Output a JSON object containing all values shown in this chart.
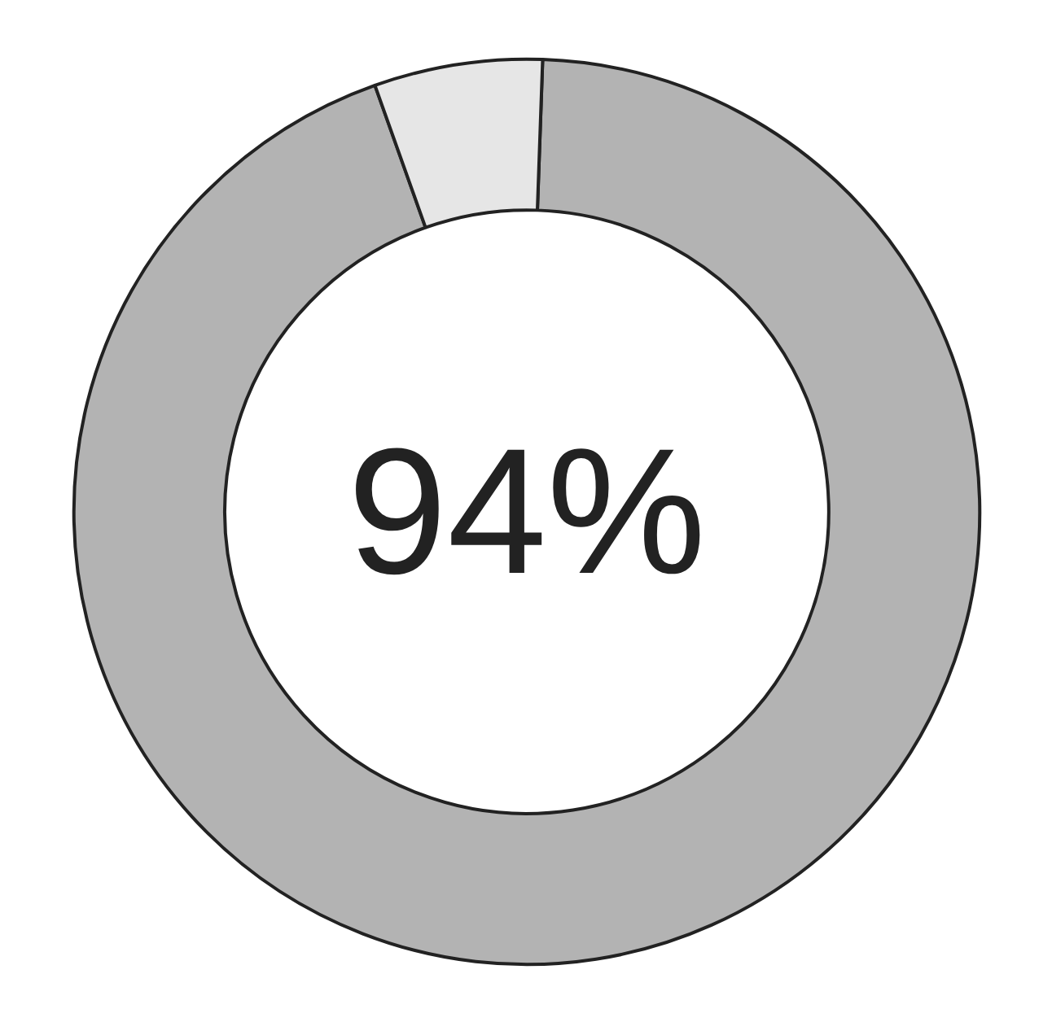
{
  "chart_data": {
    "type": "donut",
    "categories": [
      null,
      null
    ],
    "values": [
      94,
      6
    ],
    "colors": [
      "#b3b3b3",
      "#e6e6e6"
    ],
    "annotations": [
      "94%"
    ]
  }
}
